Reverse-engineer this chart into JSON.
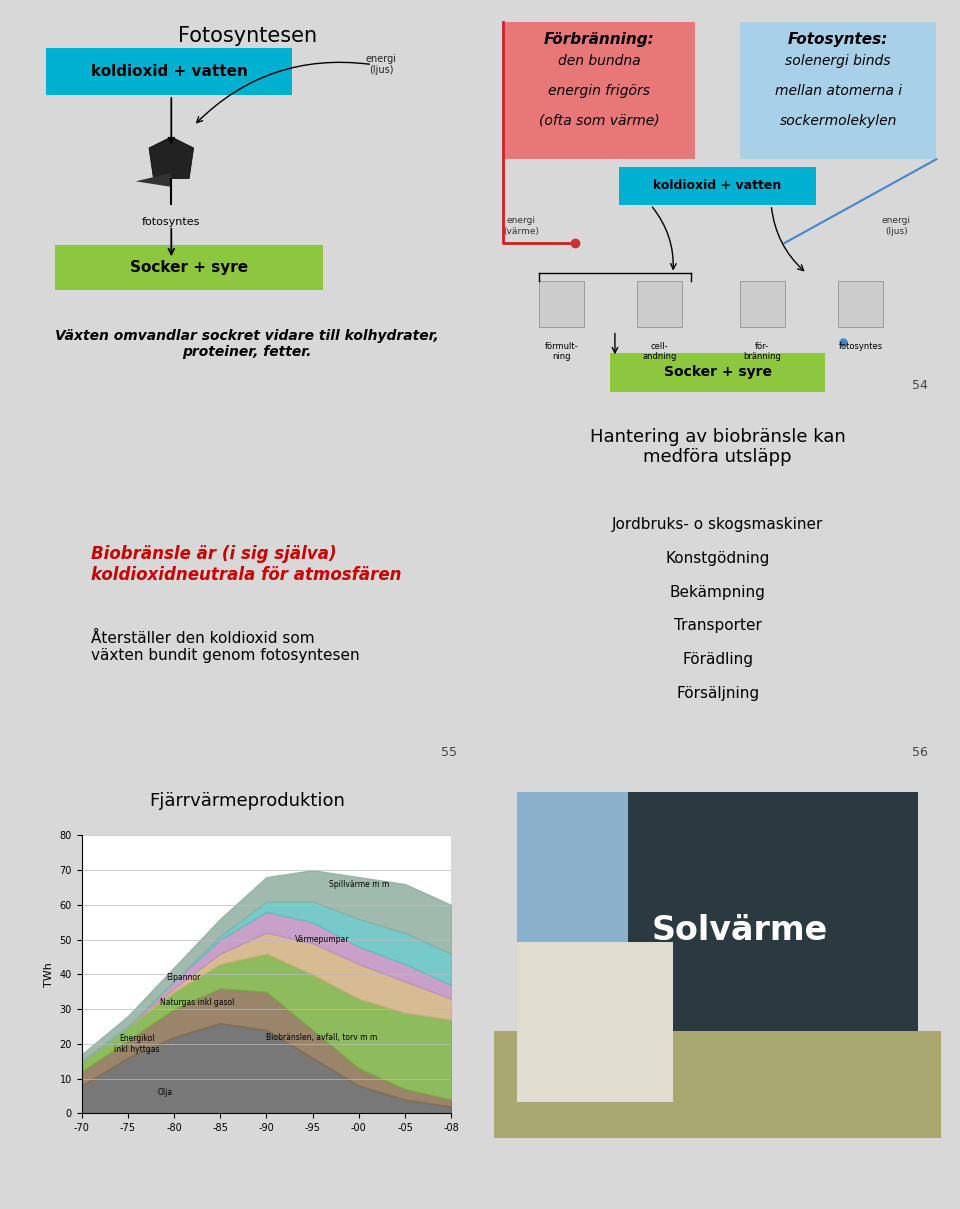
{
  "bg_color": "#d8d8d8",
  "slide_bg": "#ffffff",
  "slide1": {
    "title": "Fotosyntesen",
    "box1_text": "koldioxid + vatten",
    "box1_color": "#00b0d0",
    "box2_text": "Socker + syre",
    "box2_color": "#8dc63f",
    "label_fotosyntes": "fotosyntes",
    "label_energi": "energi\n(ljus)",
    "bottom_text": "Växten omvandlar sockret vidare till kolhydrater,\nproteiner, fetter.",
    "bottom_color": "#8dc63f"
  },
  "slide2": {
    "box_red_title": "Förbränning:",
    "box_red_lines": [
      "den bundna",
      "energin frigörs",
      "(ofta som värme)"
    ],
    "box_red_color": "#e87878",
    "box_blue_title": "Fotosyntes:",
    "box_blue_lines": [
      "solenergi binds",
      "mellan atomerna i",
      "sockermolekylen"
    ],
    "box_blue_color": "#a8d0e8",
    "koldioxid_text": "koldioxid + vatten",
    "koldioxid_color": "#00b0d0",
    "socker_text": "Socker + syre",
    "socker_color": "#8dc63f",
    "energi_varme": "energi\n(värme)",
    "energi_ljus": "energi\n(ljus)",
    "slide_num": "54"
  },
  "slide3": {
    "left_title_red": "Biobränsle är (i sig själva)\nkoldioxidneutrala för atmosfären",
    "left_text": "Återställer den koldioxid som\nväxten bundit genom fotosyntesen",
    "right_title": "Hantering av biobränsle kan\nmedföra utsläpp",
    "right_items": [
      "Jordbruks- o skogsmaskiner",
      "Konstgödning",
      "Bekämpning",
      "Transporter",
      "Förädling",
      "Försäljning"
    ],
    "slide_num_left": "55",
    "slide_num_right": "56"
  },
  "slide4_left": {
    "title": "Fjärrvärmeproduktion",
    "ylabel": "TWh",
    "xlabel_vals": [
      "-70",
      "-75",
      "-80",
      "-85",
      "-90",
      "-95",
      "-00",
      "-05",
      "-08"
    ],
    "yticks": [
      0,
      10,
      20,
      30,
      40,
      50,
      60,
      70,
      80
    ]
  },
  "slide4_right": {
    "text": "Solvärme"
  }
}
